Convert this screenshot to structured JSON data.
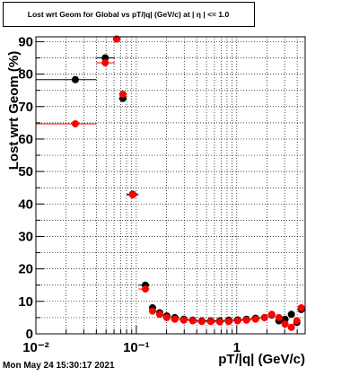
{
  "chart_data": {
    "type": "scatter",
    "title": "Lost wrt Geom for Global vs pT/|q| (GeV/c) at | η | <= 1.0",
    "xlabel": "pT/|q| (GeV/c)",
    "ylabel": "Lost wrt Geom (%)",
    "timestamp": "Mon May 24 15:30:17 2021",
    "xlog": true,
    "grid": true,
    "xlim": [
      0.01,
      4.8
    ],
    "ylim": [
      0,
      91.5
    ],
    "xticks": [
      {
        "value": 0.01,
        "label": "10⁻²"
      },
      {
        "value": 0.1,
        "label": "10⁻¹"
      },
      1
    ],
    "xminorticks": [
      0.02,
      0.03,
      0.04,
      0.05,
      0.06,
      0.07,
      0.08,
      0.09,
      0.2,
      0.3,
      0.4,
      0.5,
      0.6,
      0.7,
      0.8,
      0.9,
      2,
      3,
      4
    ],
    "yticks": [
      0,
      10,
      20,
      30,
      40,
      50,
      60,
      70,
      80,
      90
    ],
    "yminorticks": [
      5,
      15,
      25,
      35,
      45,
      55,
      65,
      75,
      85
    ],
    "x": [
      0.0247,
      0.049,
      0.0637,
      0.0735,
      0.092,
      0.123,
      0.145,
      0.171,
      0.201,
      0.242,
      0.297,
      0.365,
      0.449,
      0.551,
      0.677,
      0.831,
      1.02,
      1.25,
      1.54,
      1.89,
      2.23,
      2.63,
      3.03,
      3.5,
      3.97,
      4.39
    ],
    "bins": [
      0.01,
      0.04,
      0.061,
      0.067,
      0.08,
      0.105,
      0.135,
      0.158,
      0.185,
      0.22,
      0.27,
      0.33,
      0.4,
      0.5,
      0.61,
      0.75,
      0.92,
      1.13,
      1.39,
      1.7,
      2.05,
      2.42,
      2.83,
      3.25,
      3.75,
      4.2,
      4.8
    ],
    "series": [
      {
        "color": "#000000",
        "values": [
          78.3,
          85,
          90.8,
          72.5,
          43,
          15,
          8,
          6.5,
          5.5,
          5,
          4.5,
          4.2,
          4,
          4,
          4,
          4.2,
          4.3,
          4.5,
          4.8,
          5,
          5.8,
          4,
          4.5,
          6,
          3.5,
          7.5
        ]
      },
      {
        "color": "#ff0000",
        "values": [
          64.7,
          83.5,
          90.8,
          73.8,
          42.8,
          13.8,
          7,
          6,
          5,
          4.5,
          4.2,
          4,
          3.8,
          3.8,
          3.7,
          3.8,
          4,
          4.2,
          4.5,
          5,
          6,
          5,
          3,
          2,
          4,
          8
        ]
      }
    ]
  }
}
